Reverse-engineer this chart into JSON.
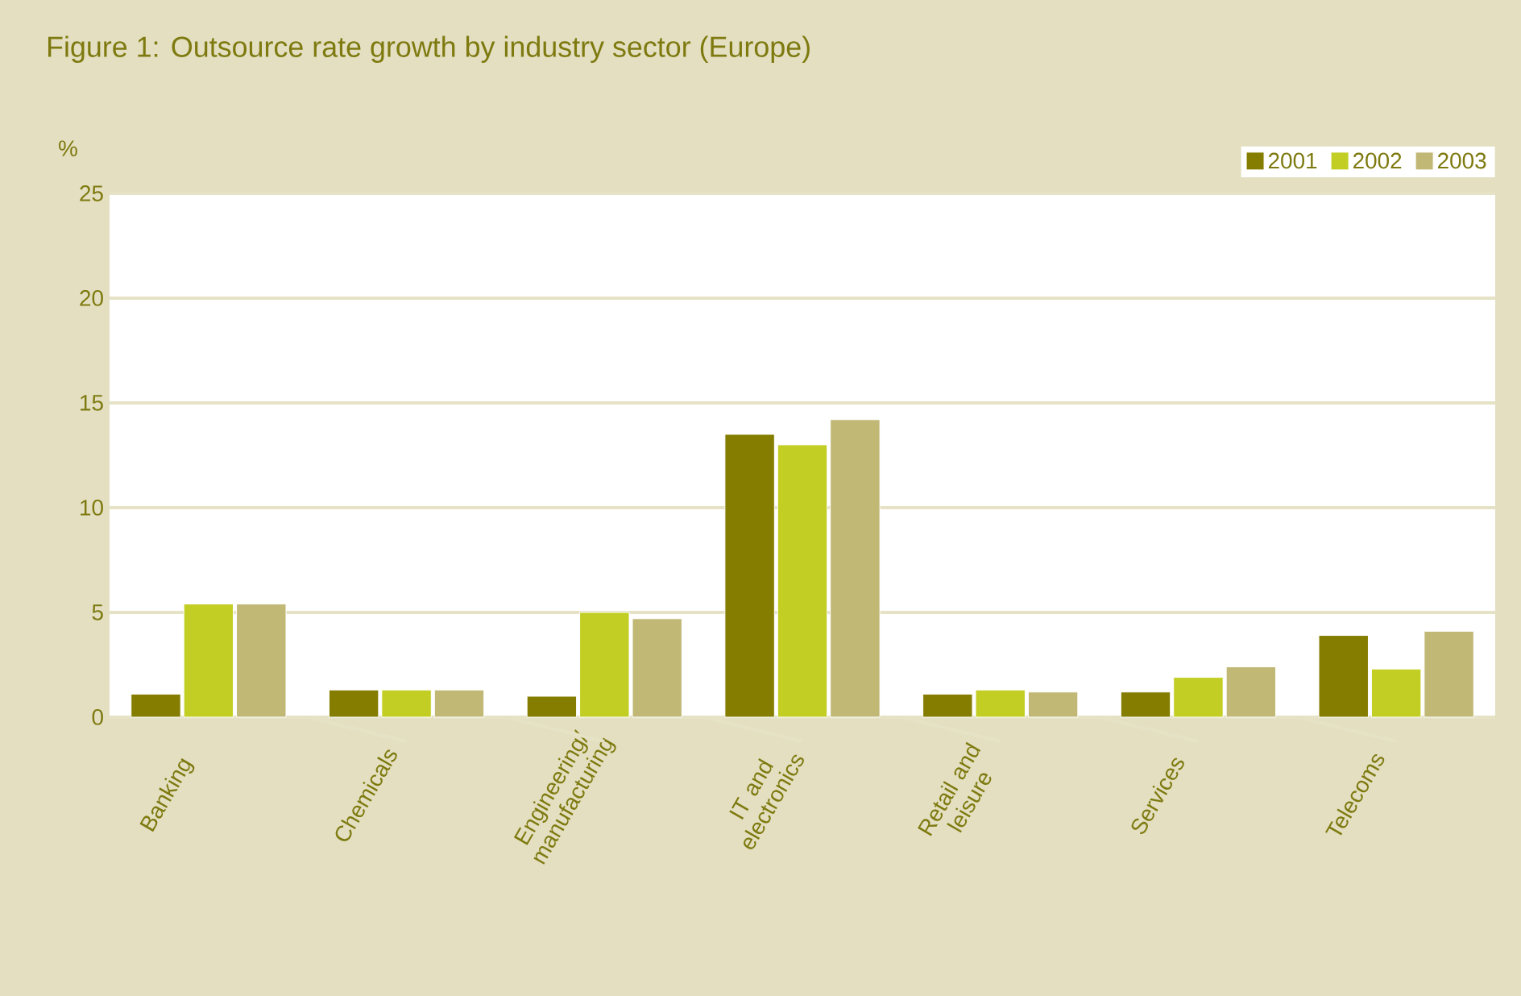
{
  "chart_data": {
    "type": "bar",
    "title": "Figure 1: Outsource rate growth by industry sector (Europe)",
    "ylabel": "%",
    "categories": [
      "Banking",
      "Chemicals",
      "Engineering/ manufacturing",
      "IT and electronics",
      "Retail and leisure",
      "Services",
      "Telecoms"
    ],
    "series": [
      {
        "name": "2001",
        "color": "#857d00",
        "values": [
          1.1,
          1.3,
          1.0,
          13.5,
          1.1,
          1.2,
          3.9
        ]
      },
      {
        "name": "2002",
        "color": "#c2ce24",
        "values": [
          5.4,
          1.3,
          5.0,
          13.0,
          1.3,
          1.9,
          2.3
        ]
      },
      {
        "name": "2003",
        "color": "#c1b876",
        "values": [
          5.4,
          1.3,
          4.7,
          14.2,
          1.2,
          2.4,
          4.1
        ]
      }
    ],
    "ylim": [
      0,
      25
    ],
    "yticks": [
      0,
      5,
      10,
      15,
      20,
      25
    ],
    "grid": "y",
    "legend": "top right"
  }
}
